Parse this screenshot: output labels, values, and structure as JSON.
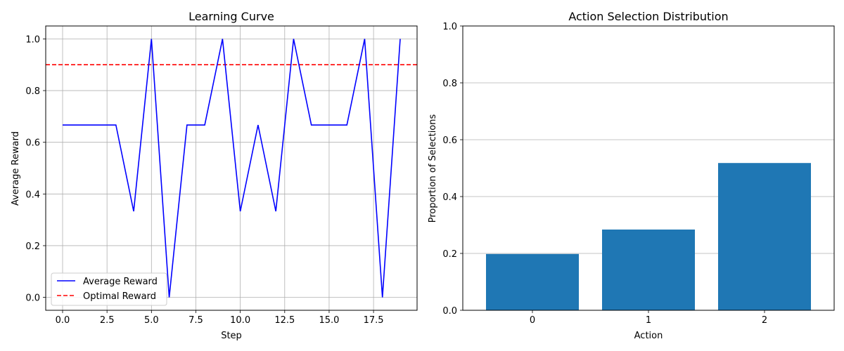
{
  "chart_data": [
    {
      "type": "line",
      "title": "Learning Curve",
      "xlabel": "Step",
      "ylabel": "Average Reward",
      "xlim": [
        -0.95,
        19.95
      ],
      "ylim": [
        -0.05,
        1.05
      ],
      "xticks": [
        0.0,
        2.5,
        5.0,
        7.5,
        10.0,
        12.5,
        15.0,
        17.5
      ],
      "xtick_labels": [
        "0.0",
        "2.5",
        "5.0",
        "7.5",
        "10.0",
        "12.5",
        "15.0",
        "17.5"
      ],
      "yticks": [
        0.0,
        0.2,
        0.4,
        0.6,
        0.8,
        1.0
      ],
      "ytick_labels": [
        "0.0",
        "0.2",
        "0.4",
        "0.6",
        "0.8",
        "1.0"
      ],
      "grid": true,
      "legend_position": "lower-left",
      "series": [
        {
          "name": "Average Reward",
          "color": "#0000ff",
          "style": "solid",
          "x": [
            0,
            1,
            2,
            3,
            4,
            5,
            6,
            7,
            8,
            9,
            10,
            11,
            12,
            13,
            14,
            15,
            16,
            17,
            18,
            19
          ],
          "y": [
            0.667,
            0.667,
            0.667,
            0.667,
            0.333,
            1.0,
            0.0,
            0.667,
            0.667,
            1.0,
            0.333,
            0.667,
            0.333,
            1.0,
            0.667,
            0.667,
            0.667,
            1.0,
            0.0,
            1.0
          ]
        }
      ],
      "reference_lines": [
        {
          "name": "Optimal Reward",
          "color": "#ff0000",
          "style": "dashed",
          "y": 0.9
        }
      ]
    },
    {
      "type": "bar",
      "title": "Action Selection Distribution",
      "xlabel": "Action",
      "ylabel": "Proportion of Selections",
      "categories": [
        "0",
        "1",
        "2"
      ],
      "values": [
        0.198,
        0.284,
        0.518
      ],
      "ylim": [
        0.0,
        1.0
      ],
      "yticks": [
        0.0,
        0.2,
        0.4,
        0.6,
        0.8,
        1.0
      ],
      "ytick_labels": [
        "0.0",
        "0.2",
        "0.4",
        "0.6",
        "0.8",
        "1.0"
      ],
      "grid": true,
      "bar_color": "#1f77b4"
    }
  ]
}
